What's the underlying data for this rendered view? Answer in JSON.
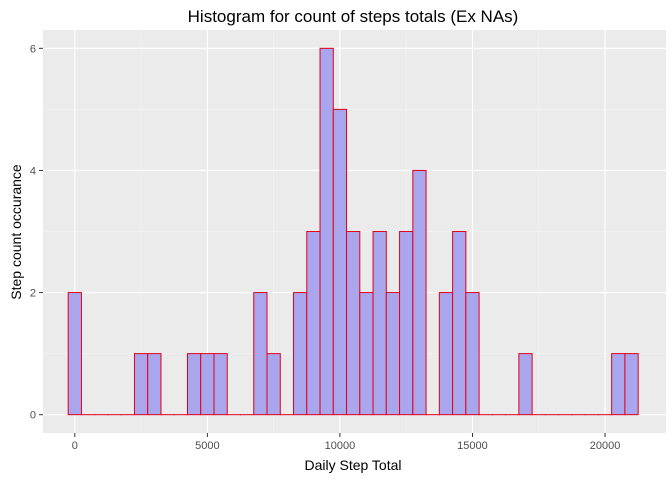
{
  "chart_data": {
    "type": "bar",
    "title": "Histogram for count of steps totals (Ex NAs)",
    "xlabel": "Daily Step Total",
    "ylabel": "Step count occurance",
    "xlim": [
      -1200,
      22300
    ],
    "ylim": [
      -0.3,
      6.3
    ],
    "x_ticks": [
      0,
      5000,
      10000,
      15000,
      20000
    ],
    "y_ticks": [
      0,
      2,
      4,
      6
    ],
    "grid": true,
    "bin_width": 500,
    "bin_start": -250,
    "counts": [
      2,
      0,
      0,
      0,
      0,
      1,
      1,
      0,
      0,
      1,
      1,
      1,
      0,
      0,
      2,
      1,
      0,
      2,
      3,
      6,
      5,
      3,
      2,
      3,
      2,
      3,
      4,
      0,
      2,
      3,
      2,
      0,
      0,
      0,
      1,
      0,
      0,
      0,
      0,
      0,
      0,
      1,
      1
    ],
    "colors": {
      "panel": "#ebebeb",
      "grid_major": "#ffffff",
      "grid_minor": "#f5f5f5",
      "bar_fill": "#aaa6ee",
      "bar_stroke": "#e0001b"
    }
  }
}
